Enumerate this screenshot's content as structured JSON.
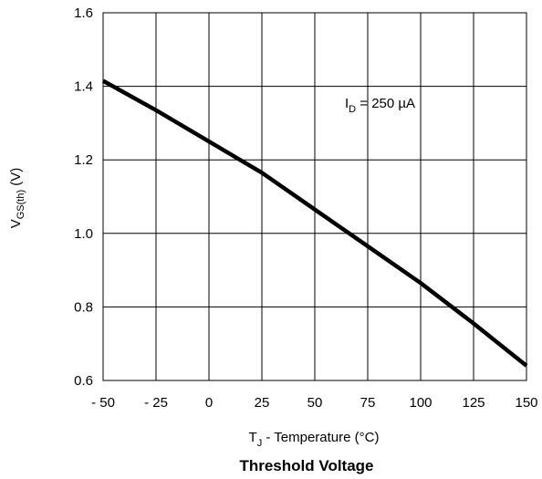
{
  "chart_data": {
    "type": "line",
    "title": "Threshold Voltage",
    "xlabel": {
      "main": "T",
      "sub": "J",
      "rest": " - Temperature (°C)"
    },
    "ylabel": {
      "main": "V",
      "sub": "GS(th)",
      "rest": " (V)"
    },
    "xlim": [
      -50,
      150
    ],
    "ylim": [
      0.6,
      1.6
    ],
    "x_ticks": [
      -50,
      -25,
      0,
      25,
      50,
      75,
      100,
      125,
      150
    ],
    "x_tick_labels": [
      "- 50",
      "- 25",
      "0",
      "25",
      "50",
      "75",
      "100",
      "125",
      "150"
    ],
    "y_ticks": [
      0.6,
      0.8,
      1.0,
      1.2,
      1.4,
      1.6
    ],
    "y_tick_labels": [
      "0.6",
      "0.8",
      "1.0",
      "1.2",
      "1.4",
      "1.6"
    ],
    "grid": true,
    "annotation": {
      "main": "I",
      "sub": "D",
      "rest": " = 250 µA"
    },
    "line_color": "#000000",
    "series": [
      {
        "x": [
          -50,
          -25,
          0,
          25,
          50,
          75,
          100,
          125,
          150
        ],
        "y": [
          1.415,
          1.335,
          1.25,
          1.165,
          1.065,
          0.965,
          0.865,
          0.755,
          0.64
        ]
      }
    ]
  }
}
